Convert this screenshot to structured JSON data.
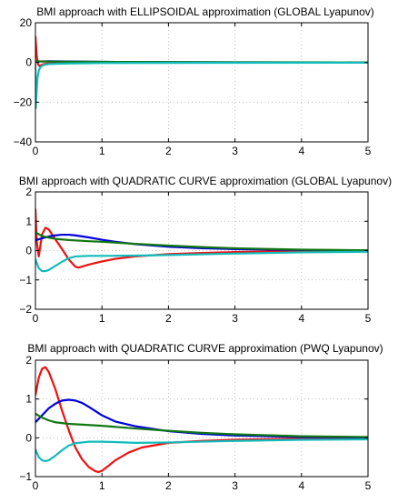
{
  "colors": {
    "red": "#ee1111",
    "blue": "#0000dd",
    "green": "#117711",
    "cyan": "#11bbbb",
    "axis": "#000000",
    "grid": "#b4b4b4"
  },
  "chart_data": [
    {
      "type": "line",
      "title": "BMI approach with ELLIPSOIDAL approximation (GLOBAL Lyapunov)",
      "xlabel": "",
      "ylabel": "",
      "xlim": [
        0,
        5
      ],
      "ylim": [
        -40,
        20
      ],
      "xticks": [
        0,
        1,
        2,
        3,
        4,
        5
      ],
      "yticks": [
        -40,
        -20,
        0,
        20
      ],
      "xtick_labels": [
        "0",
        "1",
        "2",
        "3",
        "4",
        "5"
      ],
      "ytick_labels": [
        "−40",
        "−20",
        "0",
        "20"
      ],
      "grid": true,
      "series": [
        {
          "color": "red",
          "x": [
            0,
            0.01,
            0.02,
            0.04,
            0.06,
            0.08,
            0.12,
            0.2,
            0.5,
            1,
            2,
            5
          ],
          "y": [
            13,
            8,
            3,
            -1,
            -1.8,
            -1.5,
            -0.9,
            -0.5,
            -0.2,
            -0.1,
            -0.05,
            0
          ]
        },
        {
          "color": "blue",
          "x": [
            0,
            0.05,
            0.2,
            0.5,
            1,
            2,
            5
          ],
          "y": [
            0.3,
            0.5,
            0.6,
            0.5,
            0.3,
            0.15,
            0
          ]
        },
        {
          "color": "green",
          "x": [
            0,
            0.1,
            0.5,
            1,
            2,
            3,
            5
          ],
          "y": [
            0.6,
            0.5,
            0.4,
            0.3,
            0.2,
            0.1,
            0
          ]
        },
        {
          "color": "cyan",
          "x": [
            0,
            0.005,
            0.015,
            0.03,
            0.05,
            0.08,
            0.12,
            0.2,
            0.5,
            1,
            2,
            5
          ],
          "y": [
            -1,
            -23,
            -16,
            -8,
            -4,
            -2.2,
            -1.3,
            -0.8,
            -0.5,
            -0.3,
            -0.2,
            -0.1
          ]
        }
      ]
    },
    {
      "type": "line",
      "title": "BMI approach with QUADRATIC CURVE approximation (GLOBAL Lyapunov)",
      "xlabel": "",
      "ylabel": "",
      "xlim": [
        0,
        5
      ],
      "ylim": [
        -2,
        2
      ],
      "xticks": [
        0,
        1,
        2,
        3,
        4,
        5
      ],
      "yticks": [
        -2,
        -1,
        0,
        1,
        2
      ],
      "xtick_labels": [
        "0",
        "1",
        "2",
        "3",
        "4",
        "5"
      ],
      "ytick_labels": [
        "−2",
        "−1",
        "0",
        "1",
        "2"
      ],
      "grid": true,
      "series": [
        {
          "color": "red",
          "x": [
            0,
            0.02,
            0.05,
            0.1,
            0.15,
            0.2,
            0.3,
            0.4,
            0.5,
            0.6,
            0.65,
            0.8,
            1,
            1.2,
            1.5,
            2,
            2.5,
            3,
            4,
            5
          ],
          "y": [
            1.4,
            0.3,
            -0.2,
            0.55,
            0.78,
            0.72,
            0.38,
            0.05,
            -0.3,
            -0.55,
            -0.58,
            -0.48,
            -0.37,
            -0.28,
            -0.2,
            -0.12,
            -0.08,
            -0.05,
            -0.02,
            0
          ]
        },
        {
          "color": "blue",
          "x": [
            0,
            0.1,
            0.2,
            0.3,
            0.4,
            0.5,
            0.6,
            0.8,
            1,
            1.2,
            1.5,
            2,
            2.5,
            3,
            4,
            5
          ],
          "y": [
            0.35,
            0.42,
            0.48,
            0.52,
            0.54,
            0.54,
            0.52,
            0.45,
            0.37,
            0.3,
            0.22,
            0.13,
            0.08,
            0.05,
            0.02,
            0.01
          ]
        },
        {
          "color": "green",
          "x": [
            0,
            0.1,
            0.2,
            0.3,
            0.5,
            0.8,
            1,
            1.5,
            2,
            2.5,
            3,
            4,
            5
          ],
          "y": [
            0.62,
            0.5,
            0.44,
            0.4,
            0.36,
            0.32,
            0.3,
            0.23,
            0.17,
            0.12,
            0.08,
            0.03,
            0.01
          ]
        },
        {
          "color": "cyan",
          "x": [
            0,
            0.05,
            0.1,
            0.15,
            0.2,
            0.3,
            0.4,
            0.5,
            0.6,
            0.8,
            1,
            1.5,
            2,
            3,
            4,
            5
          ],
          "y": [
            -0.3,
            -0.6,
            -0.7,
            -0.7,
            -0.66,
            -0.52,
            -0.38,
            -0.26,
            -0.2,
            -0.18,
            -0.18,
            -0.17,
            -0.15,
            -0.1,
            -0.06,
            -0.04
          ]
        }
      ]
    },
    {
      "type": "line",
      "title": "BMI approach with QUADRATIC CURVE approximation (PWQ Lyapunov)",
      "xlabel": "",
      "ylabel": "",
      "xlim": [
        0,
        5
      ],
      "ylim": [
        -1,
        2
      ],
      "xticks": [
        0,
        1,
        2,
        3,
        4,
        5
      ],
      "yticks": [
        -1,
        0,
        1,
        2
      ],
      "xtick_labels": [
        "0",
        "1",
        "2",
        "3",
        "4",
        "5"
      ],
      "ytick_labels": [
        "−1",
        "0",
        "1",
        "2"
      ],
      "grid": true,
      "series": [
        {
          "color": "red",
          "x": [
            0,
            0.05,
            0.1,
            0.15,
            0.2,
            0.3,
            0.4,
            0.5,
            0.6,
            0.7,
            0.8,
            0.9,
            0.95,
            1,
            1.1,
            1.2,
            1.4,
            1.6,
            2,
            2.5,
            3,
            4,
            5
          ],
          "y": [
            1.1,
            1.55,
            1.78,
            1.82,
            1.7,
            1.25,
            0.7,
            0.2,
            -0.25,
            -0.55,
            -0.75,
            -0.86,
            -0.88,
            -0.85,
            -0.72,
            -0.58,
            -0.38,
            -0.25,
            -0.13,
            -0.08,
            -0.05,
            -0.02,
            0
          ]
        },
        {
          "color": "blue",
          "x": [
            0,
            0.1,
            0.2,
            0.3,
            0.4,
            0.5,
            0.6,
            0.7,
            0.8,
            1,
            1.2,
            1.5,
            2,
            2.5,
            3,
            4,
            5
          ],
          "y": [
            0.4,
            0.58,
            0.76,
            0.88,
            0.96,
            0.98,
            0.96,
            0.9,
            0.8,
            0.58,
            0.42,
            0.3,
            0.17,
            0.1,
            0.06,
            0.02,
            0.01
          ]
        },
        {
          "color": "green",
          "x": [
            0,
            0.1,
            0.2,
            0.3,
            0.5,
            0.8,
            1,
            1.5,
            2,
            2.5,
            3,
            4,
            5
          ],
          "y": [
            0.62,
            0.52,
            0.45,
            0.4,
            0.36,
            0.33,
            0.31,
            0.24,
            0.18,
            0.13,
            0.09,
            0.04,
            0.02
          ]
        },
        {
          "color": "cyan",
          "x": [
            0,
            0.05,
            0.1,
            0.15,
            0.2,
            0.3,
            0.4,
            0.5,
            0.6,
            0.8,
            1,
            1.2,
            1.5,
            2,
            3,
            4,
            5
          ],
          "y": [
            -0.3,
            -0.5,
            -0.58,
            -0.6,
            -0.58,
            -0.46,
            -0.32,
            -0.2,
            -0.14,
            -0.1,
            -0.1,
            -0.11,
            -0.13,
            -0.12,
            -0.08,
            -0.05,
            -0.04
          ]
        }
      ]
    }
  ]
}
